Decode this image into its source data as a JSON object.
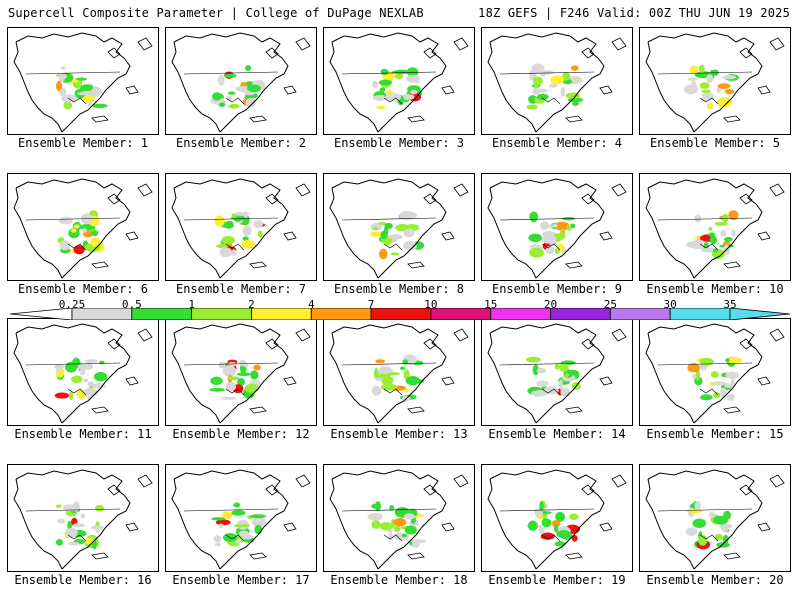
{
  "header": {
    "title": "Supercell Composite Parameter | College of DuPage NEXLAB",
    "run_info": "18Z GEFS | F246 Valid: 00Z THU JUN 19 2025"
  },
  "panels": [
    {
      "caption": "Ensemble Member: 1"
    },
    {
      "caption": "Ensemble Member: 2"
    },
    {
      "caption": "Ensemble Member: 3"
    },
    {
      "caption": "Ensemble Member: 4"
    },
    {
      "caption": "Ensemble Member: 5"
    },
    {
      "caption": "Ensemble Member: 6"
    },
    {
      "caption": "Ensemble Member: 7"
    },
    {
      "caption": "Ensemble Member: 8"
    },
    {
      "caption": "Ensemble Member: 9"
    },
    {
      "caption": "Ensemble Member: 10"
    },
    {
      "caption": "Ensemble Member: 11"
    },
    {
      "caption": "Ensemble Member: 12"
    },
    {
      "caption": "Ensemble Member: 13"
    },
    {
      "caption": "Ensemble Member: 14"
    },
    {
      "caption": "Ensemble Member: 15"
    },
    {
      "caption": "Ensemble Member: 16"
    },
    {
      "caption": "Ensemble Member: 17"
    },
    {
      "caption": "Ensemble Member: 18"
    },
    {
      "caption": "Ensemble Member: 19"
    },
    {
      "caption": "Ensemble Member: 20"
    }
  ],
  "colorbar": {
    "labels": [
      "0.25",
      "0.5",
      "1",
      "2",
      "4",
      "7",
      "10",
      "15",
      "20",
      "25",
      "30",
      "35"
    ],
    "colors": [
      "#d9d9d9",
      "#33dd33",
      "#99ee33",
      "#ffee33",
      "#ff9911",
      "#ee1111",
      "#dd1177",
      "#ee33ee",
      "#9922dd",
      "#bb77ee",
      "#55ddee"
    ]
  },
  "selected_member": "Ensemble Member: 20"
}
